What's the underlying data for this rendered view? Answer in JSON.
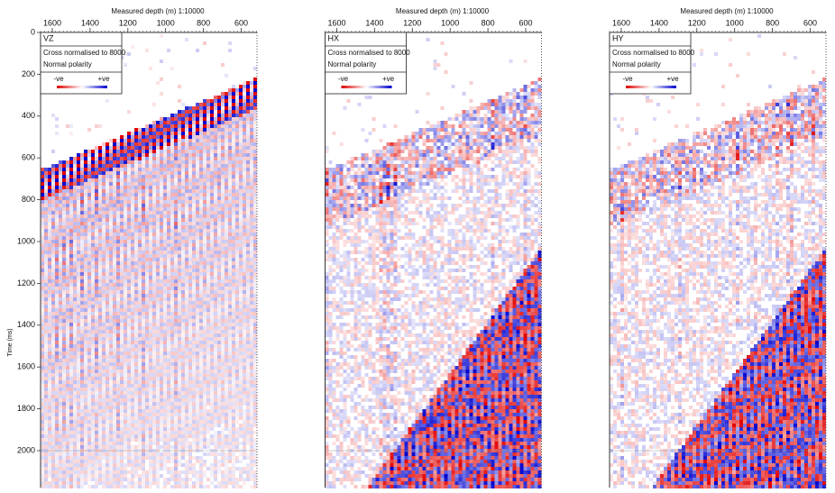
{
  "y_axis": {
    "label": "Time (ms)",
    "ticks": [
      0,
      200,
      400,
      600,
      800,
      1000,
      1200,
      1400,
      1600,
      1800,
      2000
    ]
  },
  "panels": [
    {
      "x_axis_label": "Measured depth (m)  1:10000",
      "x_ticks": [
        1600,
        1400,
        1200,
        1000,
        800,
        600
      ],
      "component": "VZ",
      "normalisation": "Cross normalised to 8000",
      "polarity": "Normal polarity",
      "legend_negative": "-ve",
      "legend_positive": "+ve"
    },
    {
      "x_axis_label": "Measured depth (m)  1:10000",
      "x_ticks": [
        1600,
        1400,
        1200,
        1000,
        800,
        600
      ],
      "component": "HX",
      "normalisation": "Cross normalised to 8000",
      "polarity": "Normal polarity",
      "legend_negative": "-ve",
      "legend_positive": "+ve"
    },
    {
      "x_axis_label": "Measured depth (m)  1:10000",
      "x_ticks": [
        1600,
        1400,
        1200,
        1000,
        800,
        600
      ],
      "component": "HY",
      "normalisation": "Cross normalised to 8000",
      "polarity": "Normal polarity",
      "legend_negative": "-ve",
      "legend_positive": "+ve"
    }
  ]
}
